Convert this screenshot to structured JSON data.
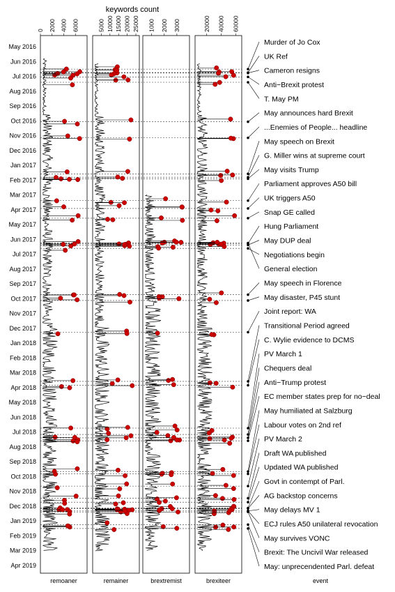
{
  "chart_data": {
    "type": "line",
    "title": "keywords count",
    "panels": [
      {
        "name": "remoaner",
        "ticks": [
          0,
          2000,
          4000,
          6000
        ],
        "xlim": [
          0,
          8000
        ]
      },
      {
        "name": "remainer",
        "ticks": [
          5000,
          10000,
          15000,
          20000,
          25000
        ],
        "xlim": [
          0,
          27000
        ]
      },
      {
        "name": "brextremist",
        "ticks": [
          1000,
          2000,
          3000
        ],
        "xlim": [
          300,
          4000
        ]
      },
      {
        "name": "brexiteer",
        "ticks": [
          20000,
          40000,
          60000
        ],
        "xlim": [
          4000,
          68000
        ]
      }
    ],
    "event_column_label": "event",
    "months": [
      "May 2016",
      "Jun 2016",
      "Jul 2016",
      "Aug 2016",
      "Sep 2016",
      "Oct 2016",
      "Nov 2016",
      "Dec 2016",
      "Jan 2017",
      "Feb 2017",
      "Mar 2017",
      "Apr 2017",
      "May 2017",
      "Jun 2017",
      "Jul 2017",
      "Aug 2017",
      "Sep 2017",
      "Oct 2017",
      "Nov 2017",
      "Dec 2017",
      "Jan 2018",
      "Feb 2018",
      "Mar 2018",
      "Apr 2018",
      "May 2018",
      "Jun 2018",
      "Jul 2018",
      "Aug 2018",
      "Sep 2018",
      "Oct 2018",
      "Nov 2018",
      "Dec 2018",
      "Jan 2019",
      "Feb 2019",
      "Mar 2019",
      "Apr 2019"
    ],
    "events": [
      {
        "label": "Murder of Jo Cox",
        "date": "2016-06-16"
      },
      {
        "label": "UK Ref",
        "date": "2016-06-23"
      },
      {
        "label": "Cameron resigns",
        "date": "2016-06-24"
      },
      {
        "label": "Anti−Brexit protest",
        "date": "2016-07-02"
      },
      {
        "label": "T. May PM",
        "date": "2016-07-13"
      },
      {
        "label": "May announces hard Brexit",
        "date": "2016-10-02"
      },
      {
        "label": "...Enemies of People... headline",
        "date": "2016-11-04"
      },
      {
        "label": "May speech on Brexit",
        "date": "2017-01-17"
      },
      {
        "label": "G. Miller wins at supreme court",
        "date": "2017-01-24"
      },
      {
        "label": "May visits Trump",
        "date": "2017-01-27"
      },
      {
        "label": "Parliament approves A50 bill",
        "date": "2017-03-13"
      },
      {
        "label": "UK triggers A50",
        "date": "2017-03-29"
      },
      {
        "label": "Snap GE called",
        "date": "2017-04-18"
      },
      {
        "label": "Hung Parliament",
        "date": "2017-06-09"
      },
      {
        "label": "May DUP deal",
        "date": "2017-06-12"
      },
      {
        "label": "Negotiations begin",
        "date": "2017-06-19"
      },
      {
        "label": "General election",
        "date": "2017-06-08"
      },
      {
        "label": "May speech in Florence",
        "date": "2017-09-22"
      },
      {
        "label": "May disaster, P45 stunt",
        "date": "2017-10-04"
      },
      {
        "label": "Joint report: WA",
        "date": "2017-12-08"
      },
      {
        "label": "Transitional Period agreed",
        "date": "2018-03-19"
      },
      {
        "label": "C. Wylie evidence to DCMS",
        "date": "2018-03-27"
      },
      {
        "label": "PV March 1",
        "date": "2018-06-23"
      },
      {
        "label": "Chequers deal",
        "date": "2018-07-06"
      },
      {
        "label": "Anti−Trump protest",
        "date": "2018-07-13"
      },
      {
        "label": "EC member states prep for no−deal",
        "date": "2018-07-19"
      },
      {
        "label": "May humiliated at Salzburg",
        "date": "2018-09-20"
      },
      {
        "label": "Labour votes on 2nd ref",
        "date": "2018-09-25"
      },
      {
        "label": "PV March 2",
        "date": "2018-10-20"
      },
      {
        "label": "Draft WA published",
        "date": "2018-11-14"
      },
      {
        "label": "Updated WA published",
        "date": "2018-11-22"
      },
      {
        "label": "Govt in contempt of Parl.",
        "date": "2018-12-04"
      },
      {
        "label": "AG backstop concerns",
        "date": "2018-12-05"
      },
      {
        "label": "May delays MV 1",
        "date": "2018-12-10"
      },
      {
        "label": "ECJ rules A50 unilateral revocation",
        "date": "2018-12-10"
      },
      {
        "label": "May survives VONC",
        "date": "2018-12-12"
      },
      {
        "label": "Brexit: The Uncivil War released",
        "date": "2019-01-07"
      },
      {
        "label": "May: unprecendented Parl. defeat",
        "date": "2019-01-15"
      }
    ],
    "colors": {
      "line": "#000000",
      "peak": "#cc0000",
      "peak_stroke": "#7a0000"
    },
    "legend": "none",
    "grid": false
  }
}
